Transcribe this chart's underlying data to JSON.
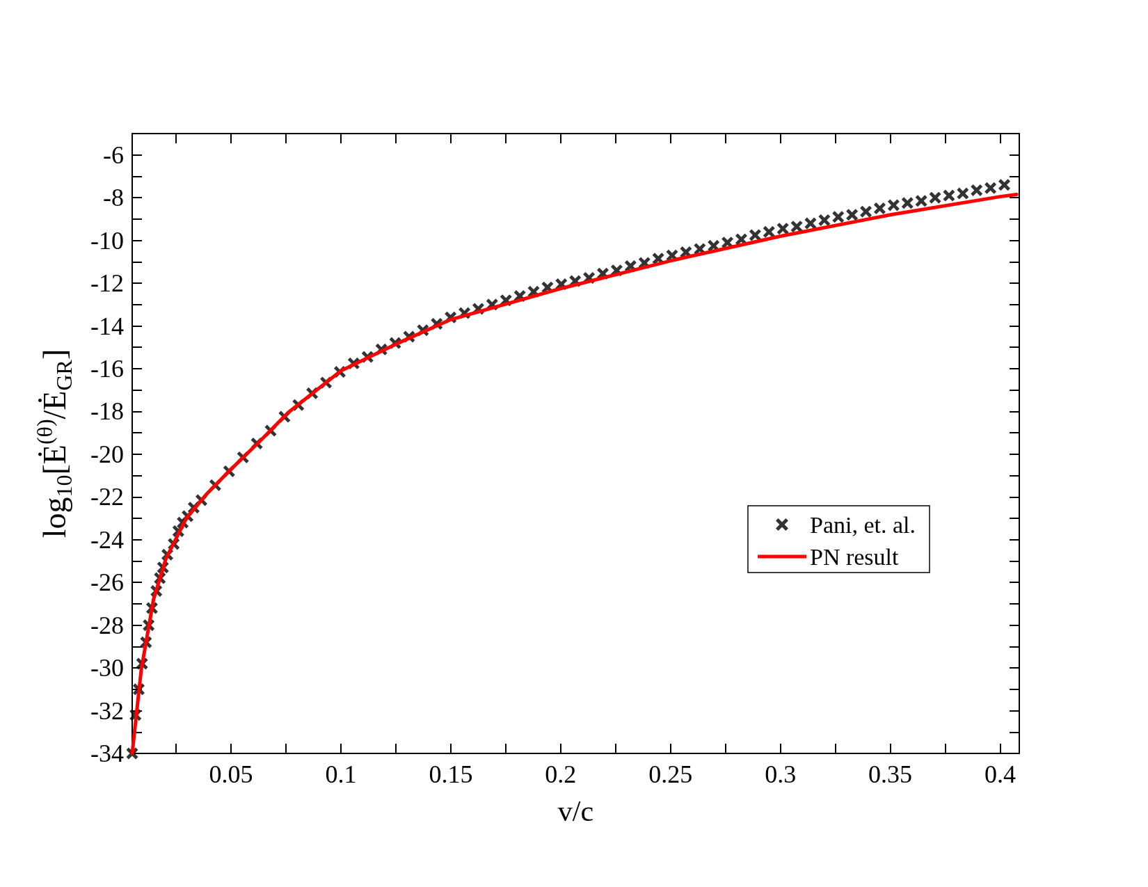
{
  "chart_data": {
    "type": "scatter",
    "xlabel": "v/c",
    "ylabel": "log$_{10}$[Ė$^{(θ)}$/Ė$_{GR}$]",
    "xlim": [
      0.005,
      0.4087
    ],
    "ylim": [
      -34,
      -5
    ],
    "xticks": [
      {
        "value": 0.025,
        "label": null
      },
      0.05,
      {
        "value": 0.075,
        "label": null
      },
      0.1,
      {
        "value": 0.125,
        "label": null
      },
      0.15,
      {
        "value": 0.175,
        "label": null
      },
      0.2,
      {
        "value": 0.225,
        "label": null
      },
      0.25,
      {
        "value": 0.275,
        "label": null
      },
      0.3,
      {
        "value": 0.325,
        "label": null
      },
      0.35,
      {
        "value": 0.375,
        "label": null
      },
      0.4
    ],
    "yticks": [
      -34,
      {
        "value": -33,
        "label": null
      },
      -32,
      {
        "value": -31,
        "label": null
      },
      -30,
      {
        "value": -29,
        "label": null
      },
      -28,
      {
        "value": -27,
        "label": null
      },
      -26,
      {
        "value": -25,
        "label": null
      },
      -24,
      {
        "value": -23,
        "label": null
      },
      -22,
      {
        "value": -21,
        "label": null
      },
      -20,
      {
        "value": -19,
        "label": null
      },
      -18,
      {
        "value": -17,
        "label": null
      },
      -16,
      {
        "value": -15,
        "label": null
      },
      -14,
      {
        "value": -13,
        "label": null
      },
      -12,
      {
        "value": -11,
        "label": null
      },
      -10,
      {
        "value": -9,
        "label": null
      },
      -8,
      {
        "value": -7,
        "label": null
      },
      -6,
      {
        "value": -5,
        "label": null
      }
    ],
    "grid": false,
    "legend": "right",
    "series": [
      {
        "name": "Pani, et. al.",
        "marker": "cross",
        "color": "#000000",
        "x": [
          0.005,
          0.0065,
          0.008,
          0.0095,
          0.0113,
          0.0125,
          0.014,
          0.016,
          0.0176,
          0.019,
          0.021,
          0.0239,
          0.026,
          0.028,
          0.0302,
          0.033,
          0.0365,
          0.0428,
          0.0491,
          0.0554,
          0.0617,
          0.068,
          0.0743,
          0.0806,
          0.0869,
          0.0932,
          0.0995,
          0.1058,
          0.1121,
          0.1184,
          0.1247,
          0.131,
          0.1373,
          0.1436,
          0.1499,
          0.1562,
          0.1625,
          0.1688,
          0.1751,
          0.1814,
          0.1877,
          0.194,
          0.2003,
          0.2066,
          0.2129,
          0.2192,
          0.2255,
          0.2318,
          0.2381,
          0.2444,
          0.2507,
          0.257,
          0.2633,
          0.2696,
          0.2759,
          0.2822,
          0.2885,
          0.2948,
          0.3011,
          0.3074,
          0.3137,
          0.32,
          0.3263,
          0.3326,
          0.3389,
          0.3452,
          0.3515,
          0.3578,
          0.3641,
          0.3704,
          0.3767,
          0.383,
          0.3893,
          0.3956,
          0.4019
        ],
        "values": [
          -34,
          -32.2,
          -31.0,
          -29.8,
          -28.8,
          -28.0,
          -27.2,
          -26.4,
          -25.8,
          -25.3,
          -24.7,
          -24.2,
          -23.6,
          -23.2,
          -22.9,
          -22.5,
          -22.15,
          -21.45,
          -20.8,
          -20.15,
          -19.5,
          -18.9,
          -18.25,
          -17.7,
          -17.15,
          -16.65,
          -16.15,
          -15.75,
          -15.45,
          -15.1,
          -14.8,
          -14.5,
          -14.2,
          -13.9,
          -13.6,
          -13.4,
          -13.2,
          -13.0,
          -12.8,
          -12.6,
          -12.4,
          -12.2,
          -12.05,
          -11.9,
          -11.75,
          -11.55,
          -11.4,
          -11.2,
          -11.05,
          -10.85,
          -10.7,
          -10.55,
          -10.4,
          -10.25,
          -10.1,
          -9.95,
          -9.75,
          -9.6,
          -9.45,
          -9.35,
          -9.2,
          -9.05,
          -8.9,
          -8.8,
          -8.65,
          -8.5,
          -8.35,
          -8.25,
          -8.15,
          -8.0,
          -7.9,
          -7.8,
          -7.65,
          -7.55,
          -7.4
        ]
      },
      {
        "name": "PN result",
        "type": "line",
        "marker": "none",
        "line_style": "solid",
        "color": "#ff0000",
        "x": [
          0.005,
          0.0091,
          0.0147,
          0.0203,
          0.0296,
          0.039,
          0.05,
          0.063,
          0.076,
          0.1,
          0.125,
          0.15,
          0.2,
          0.25,
          0.3,
          0.35,
          0.4,
          0.4075
        ],
        "values": [
          -34,
          -30.1,
          -26.8,
          -24.9,
          -23.0,
          -21.85,
          -20.7,
          -19.4,
          -18.05,
          -16.1,
          -14.85,
          -13.7,
          -12.25,
          -10.95,
          -9.8,
          -8.8,
          -7.95,
          -7.85
        ]
      }
    ]
  }
}
